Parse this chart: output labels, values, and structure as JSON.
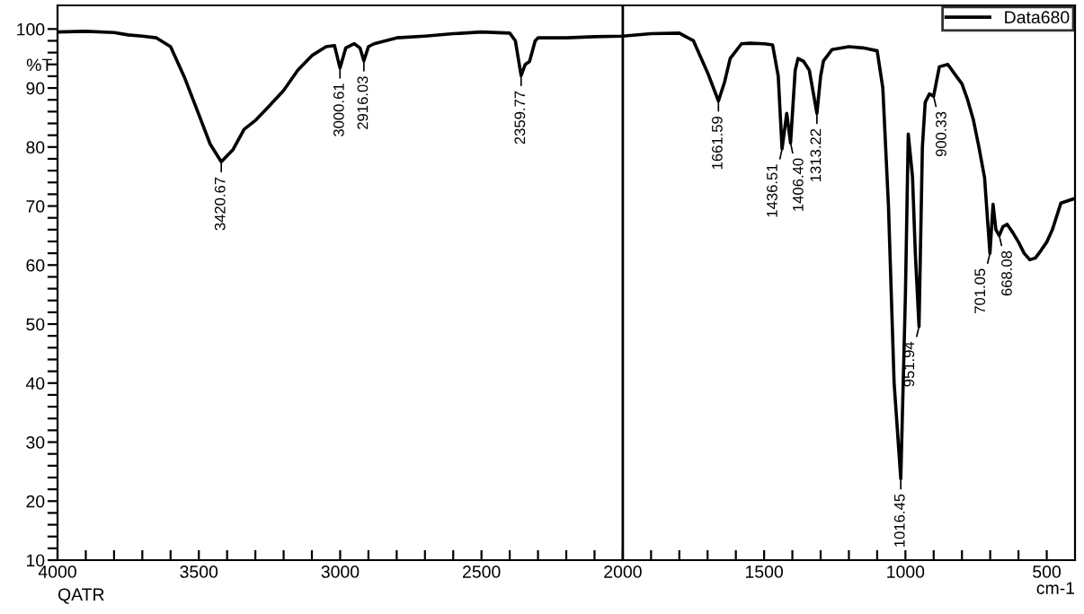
{
  "chart_data": {
    "type": "line",
    "xlabel": "cm-1",
    "ylabel": "%T",
    "legend": "top right",
    "grid": false,
    "marker": "none",
    "line_style": "solid",
    "xlim": [
      4000,
      400
    ],
    "ylim": [
      10,
      104
    ],
    "xticks": [
      4000,
      {
        "value": 3900,
        "label": null
      },
      {
        "value": 3800,
        "label": null
      },
      {
        "value": 3700,
        "label": null
      },
      {
        "value": 3600,
        "label": null
      },
      3500,
      {
        "value": 3400,
        "label": null
      },
      {
        "value": 3300,
        "label": null
      },
      {
        "value": 3200,
        "label": null
      },
      {
        "value": 3100,
        "label": null
      },
      3000,
      {
        "value": 2900,
        "label": null
      },
      {
        "value": 2800,
        "label": null
      },
      {
        "value": 2700,
        "label": null
      },
      {
        "value": 2600,
        "label": null
      },
      2500,
      {
        "value": 2400,
        "label": null
      },
      {
        "value": 2300,
        "label": null
      },
      {
        "value": 2200,
        "label": null
      },
      {
        "value": 2100,
        "label": null
      },
      2000,
      {
        "value": 1900,
        "label": null
      },
      {
        "value": 1800,
        "label": null
      },
      {
        "value": 1700,
        "label": null
      },
      {
        "value": 1600,
        "label": null
      },
      1500,
      {
        "value": 1400,
        "label": null
      },
      {
        "value": 1300,
        "label": null
      },
      {
        "value": 1200,
        "label": null
      },
      {
        "value": 1100,
        "label": null
      },
      1000,
      {
        "value": 900,
        "label": null
      },
      {
        "value": 800,
        "label": null
      },
      {
        "value": 700,
        "label": null
      },
      {
        "value": 600,
        "label": null
      },
      500
    ],
    "yticks": [
      10,
      {
        "value": 12,
        "label": null
      },
      {
        "value": 14,
        "label": null
      },
      {
        "value": 16,
        "label": null
      },
      {
        "value": 18,
        "label": null
      },
      20,
      {
        "value": 22,
        "label": null
      },
      {
        "value": 24,
        "label": null
      },
      {
        "value": 26,
        "label": null
      },
      {
        "value": 28,
        "label": null
      },
      30,
      {
        "value": 32,
        "label": null
      },
      {
        "value": 34,
        "label": null
      },
      {
        "value": 36,
        "label": null
      },
      {
        "value": 38,
        "label": null
      },
      40,
      {
        "value": 42,
        "label": null
      },
      {
        "value": 44,
        "label": null
      },
      {
        "value": 46,
        "label": null
      },
      {
        "value": 48,
        "label": null
      },
      50,
      {
        "value": 52,
        "label": null
      },
      {
        "value": 54,
        "label": null
      },
      {
        "value": 56,
        "label": null
      },
      {
        "value": 58,
        "label": null
      },
      60,
      {
        "value": 62,
        "label": null
      },
      {
        "value": 64,
        "label": null
      },
      {
        "value": 66,
        "label": null
      },
      {
        "value": 68,
        "label": null
      },
      70,
      {
        "value": 72,
        "label": null
      },
      {
        "value": 74,
        "label": null
      },
      {
        "value": 76,
        "label": null
      },
      {
        "value": 78,
        "label": null
      },
      80,
      {
        "value": 82,
        "label": null
      },
      {
        "value": 84,
        "label": null
      },
      {
        "value": 86,
        "label": null
      },
      {
        "value": 88,
        "label": null
      },
      90,
      {
        "value": 92,
        "label": null
      },
      {
        "value": 94,
        "label": null
      },
      {
        "value": 96,
        "label": null
      },
      {
        "value": 98,
        "label": null
      },
      100
    ],
    "ref_lines": [
      {
        "axis": "x",
        "value": 2000,
        "color": "#000000",
        "line_style": "solid"
      }
    ],
    "series": [
      {
        "name": "Data680",
        "color": "#000000",
        "x": [
          4000,
          3900,
          3800,
          3750,
          3700,
          3650,
          3600,
          3550,
          3500,
          3460,
          3420.67,
          3380,
          3340,
          3300,
          3250,
          3200,
          3150,
          3100,
          3050,
          3020,
          3000.61,
          2980,
          2950,
          2930,
          2916.03,
          2900,
          2880,
          2800,
          2700,
          2600,
          2500,
          2400,
          2380,
          2359.77,
          2345,
          2330,
          2310,
          2300,
          2200,
          2100,
          2000,
          1900,
          1800,
          1750,
          1700,
          1661.59,
          1640,
          1620,
          1580,
          1550,
          1500,
          1470,
          1450,
          1436.51,
          1420,
          1406.4,
          1390,
          1380,
          1360,
          1340,
          1313.22,
          1300,
          1290,
          1260,
          1200,
          1150,
          1100,
          1080,
          1060,
          1040,
          1016.45,
          1000,
          990,
          975,
          965,
          951.94,
          940,
          930,
          915,
          900.33,
          880,
          850,
          820,
          800,
          780,
          760,
          740,
          720,
          701.05,
          690,
          680,
          668.08,
          655,
          640,
          620,
          600,
          580,
          560,
          540,
          520,
          500,
          480,
          460,
          450,
          400
        ],
        "values": [
          99.5,
          99.6,
          99.4,
          99,
          98.8,
          98.5,
          97,
          91.7,
          85.5,
          80.5,
          77.5,
          79.5,
          83,
          84.5,
          87,
          89.6,
          93,
          95.5,
          97,
          97.2,
          93.4,
          96.8,
          97.5,
          96.8,
          94.6,
          97,
          97.5,
          98.5,
          98.8,
          99.2,
          99.5,
          99.3,
          98,
          92.1,
          94,
          94.5,
          98,
          98.5,
          98.5,
          98.7,
          98.8,
          99.2,
          99.3,
          98,
          92.6,
          87.8,
          91,
          95,
          97.5,
          97.6,
          97.5,
          97.3,
          92,
          79.7,
          85.7,
          80.7,
          93,
          95,
          94.5,
          93,
          85.7,
          92,
          94.6,
          96.5,
          97,
          96.8,
          96.3,
          90,
          70,
          40,
          23.8,
          55,
          82.2,
          75,
          62,
          49.6,
          80,
          87.6,
          89,
          88.6,
          93.6,
          94,
          92,
          90.7,
          88,
          84.7,
          80,
          74.8,
          62,
          70.3,
          66,
          65,
          66.5,
          66.9,
          65.5,
          63.9,
          62,
          60.9,
          61.2,
          62.5,
          63.9,
          66,
          69,
          70.5,
          71.3
        ]
      }
    ],
    "annotations": [
      {
        "text": "3420.67",
        "x": 3420.67,
        "y": 77.5
      },
      {
        "text": "3000.61",
        "x": 3000.61,
        "y": 93.4
      },
      {
        "text": "2916.03",
        "x": 2916.03,
        "y": 94.6
      },
      {
        "text": "2359.77",
        "x": 2359.77,
        "y": 92.1
      },
      {
        "text": "1661.59",
        "x": 1661.59,
        "y": 87.8
      },
      {
        "text": "1436.51",
        "x": 1436.51,
        "y": 79.7
      },
      {
        "text": "1406.40",
        "x": 1406.4,
        "y": 80.7
      },
      {
        "text": "1313.22",
        "x": 1313.22,
        "y": 85.7
      },
      {
        "text": "1016.45",
        "x": 1016.45,
        "y": 23.8
      },
      {
        "text": "951.94",
        "x": 951.94,
        "y": 49.6
      },
      {
        "text": "900.33",
        "x": 900.33,
        "y": 88.6
      },
      {
        "text": "701.05",
        "x": 701.05,
        "y": 62
      },
      {
        "text": "668.08",
        "x": 668.08,
        "y": 65
      },
      "QATR"
    ]
  }
}
